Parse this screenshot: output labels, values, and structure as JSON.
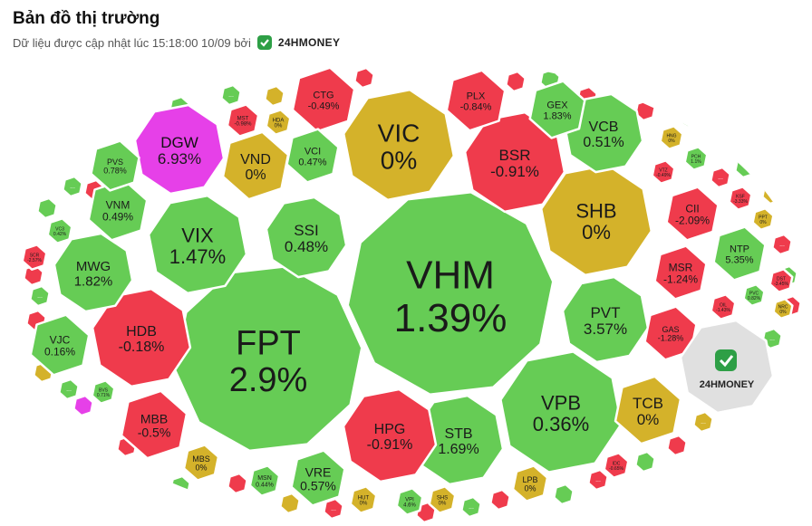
{
  "header": {
    "title": "Bản đồ thị trường",
    "subtitle": "Dữ liệu được cập nhật lúc 15:18:00 10/09 bởi",
    "brand": "24HMONEY"
  },
  "colors": {
    "up": "#66cc55",
    "down": "#ef3b4c",
    "flat": "#d4b22a",
    "ceiling": "#e640e8",
    "logo_bg": "#e0e0e0",
    "brand_green": "#2e9f46",
    "brand_purple": "#6a4bd6"
  },
  "chart_data": {
    "type": "bubble-heatmap",
    "logo_text": "24HMONEY",
    "stocks": [
      {
        "ticker": "VHM",
        "change": "1.39%",
        "status": "up"
      },
      {
        "ticker": "FPT",
        "change": "2.9%",
        "status": "up"
      },
      {
        "ticker": "VIC",
        "change": "0%",
        "status": "flat"
      },
      {
        "ticker": "SHB",
        "change": "0%",
        "status": "flat"
      },
      {
        "ticker": "VPB",
        "change": "0.36%",
        "status": "up"
      },
      {
        "ticker": "STB",
        "change": "1.69%",
        "status": "up"
      },
      {
        "ticker": "HPG",
        "change": "-0.91%",
        "status": "down"
      },
      {
        "ticker": "BSR",
        "change": "-0.91%",
        "status": "down"
      },
      {
        "ticker": "VIX",
        "change": "1.47%",
        "status": "up"
      },
      {
        "ticker": "SSI",
        "change": "0.48%",
        "status": "up"
      },
      {
        "ticker": "PVT",
        "change": "3.57%",
        "status": "up"
      },
      {
        "ticker": "HDB",
        "change": "-0.18%",
        "status": "down"
      },
      {
        "ticker": "TCB",
        "change": "0%",
        "status": "flat"
      },
      {
        "ticker": "VCB",
        "change": "0.51%",
        "status": "up"
      },
      {
        "ticker": "DGW",
        "change": "6.93%",
        "status": "ceiling"
      },
      {
        "ticker": "MWG",
        "change": "1.82%",
        "status": "up"
      },
      {
        "ticker": "VND",
        "change": "0%",
        "status": "flat"
      },
      {
        "ticker": "MBB",
        "change": "-0.5%",
        "status": "down"
      },
      {
        "ticker": "VRE",
        "change": "0.57%",
        "status": "up"
      },
      {
        "ticker": "CTG",
        "change": "-0.49%",
        "status": "down"
      },
      {
        "ticker": "PLX",
        "change": "-0.84%",
        "status": "down"
      },
      {
        "ticker": "GEX",
        "change": "1.83%",
        "status": "up"
      },
      {
        "ticker": "VNM",
        "change": "0.49%",
        "status": "up"
      },
      {
        "ticker": "VJC",
        "change": "0.16%",
        "status": "up"
      },
      {
        "ticker": "VCI",
        "change": "0.47%",
        "status": "up"
      },
      {
        "ticker": "CII",
        "change": "-2.09%",
        "status": "down"
      },
      {
        "ticker": "MSR",
        "change": "-1.24%",
        "status": "down"
      },
      {
        "ticker": "NTP",
        "change": "5.35%",
        "status": "up"
      },
      {
        "ticker": "PVS",
        "change": "0.78%",
        "status": "up"
      },
      {
        "ticker": "GAS",
        "change": "-1.28%",
        "status": "down"
      },
      {
        "ticker": "LPB",
        "change": "0%",
        "status": "flat"
      },
      {
        "ticker": "MBS",
        "change": "0%",
        "status": "flat"
      },
      {
        "ticker": "MSN",
        "change": "0.44%",
        "status": "up"
      },
      {
        "ticker": "HUT",
        "change": "0%",
        "status": "flat"
      },
      {
        "ticker": "VPI",
        "change": "4.6%",
        "status": "up"
      },
      {
        "ticker": "SHS",
        "change": "0%",
        "status": "flat"
      },
      {
        "ticker": "MST",
        "change": "-0.98%",
        "status": "down"
      },
      {
        "ticker": "HDA",
        "change": "0%",
        "status": "flat"
      },
      {
        "ticker": "VTZ",
        "change": "-0.49%",
        "status": "down"
      },
      {
        "ticker": "HNG",
        "change": "0%",
        "status": "flat"
      },
      {
        "ticker": "PCH",
        "change": "1.1%",
        "status": "up"
      },
      {
        "ticker": "KSF",
        "change": "-3.33%",
        "status": "down"
      },
      {
        "ticker": "PPT",
        "change": "0%",
        "status": "flat"
      },
      {
        "ticker": "DST",
        "change": "-3.45%",
        "status": "down"
      },
      {
        "ticker": "PVC",
        "change": "0.82%",
        "status": "up"
      },
      {
        "ticker": "NRC",
        "change": "0%",
        "status": "flat"
      },
      {
        "ticker": "OIL",
        "change": "-1.43%",
        "status": "down"
      },
      {
        "ticker": "IDC",
        "change": "-0.65%",
        "status": "down"
      },
      {
        "ticker": "VC3",
        "change": "0.42%",
        "status": "up"
      },
      {
        "ticker": "SCR",
        "change": "-2.57%",
        "status": "down"
      },
      {
        "ticker": "BVS",
        "change": "0.71%",
        "status": "up"
      }
    ],
    "small_cells": [
      {
        "status": "up"
      },
      {
        "status": "down"
      },
      {
        "status": "flat"
      },
      {
        "status": "up"
      },
      {
        "status": "down"
      },
      {
        "status": "up"
      },
      {
        "status": "down"
      },
      {
        "status": "down"
      },
      {
        "status": "up"
      },
      {
        "status": "down"
      },
      {
        "status": "up"
      },
      {
        "status": "flat"
      },
      {
        "status": "down"
      },
      {
        "status": "up"
      },
      {
        "status": "down"
      },
      {
        "status": "up"
      },
      {
        "status": "down"
      },
      {
        "status": "up"
      },
      {
        "status": "flat"
      },
      {
        "status": "down"
      },
      {
        "status": "up"
      },
      {
        "status": "down"
      },
      {
        "status": "up"
      },
      {
        "status": "down"
      },
      {
        "status": "up"
      },
      {
        "status": "down"
      },
      {
        "status": "ceiling"
      },
      {
        "status": "up"
      },
      {
        "status": "flat"
      },
      {
        "status": "down"
      },
      {
        "status": "up"
      },
      {
        "status": "down"
      },
      {
        "status": "up"
      },
      {
        "status": "up"
      },
      {
        "status": "down"
      },
      {
        "status": "down"
      },
      {
        "status": "up"
      },
      {
        "status": "down"
      },
      {
        "status": "flat"
      },
      {
        "status": "down"
      }
    ],
    "more_label": "..."
  }
}
